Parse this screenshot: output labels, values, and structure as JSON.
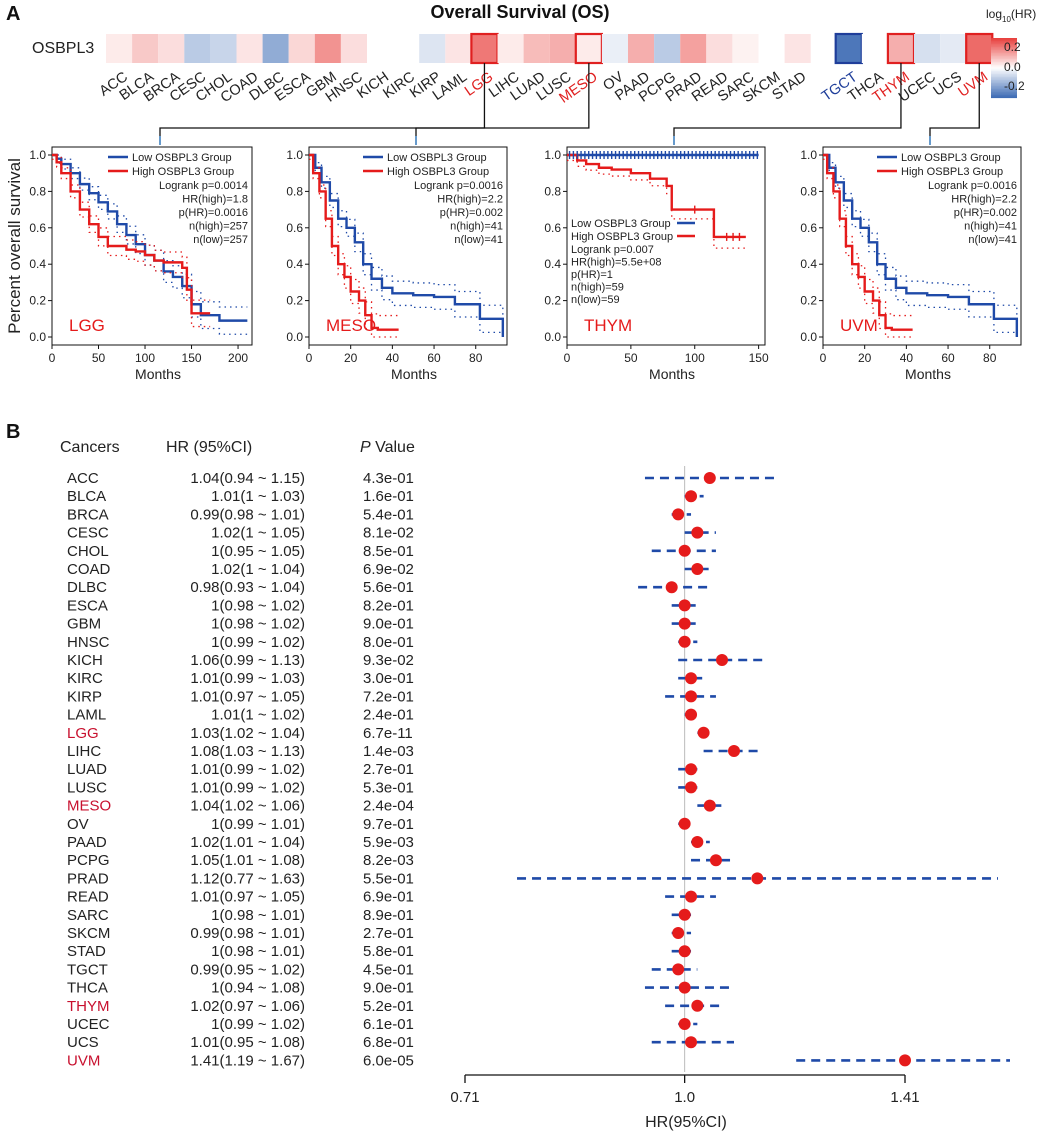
{
  "panel_a": {
    "letter": "A",
    "title": "Overall Survival (OS)",
    "gene": "OSBPL3",
    "legend": {
      "title_main": "log",
      "title_sub": "10",
      "title_tail": "(HR)",
      "ticks": [
        "0.2",
        "0.0",
        "-0.2"
      ],
      "high_color": "#e8423f",
      "low_color": "#3f6db5"
    },
    "heatmap": {
      "cancers": [
        "ACC",
        "BLCA",
        "BRCA",
        "CESC",
        "CHOL",
        "COAD",
        "DLBC",
        "ESCA",
        "GBM",
        "HNSC",
        "KICH",
        "KIRC",
        "KIRP",
        "LAML",
        "LGG",
        "LIHC",
        "LUAD",
        "LUSC",
        "MESO",
        "OV",
        "PAAD",
        "PCPG",
        "PRAD",
        "READ",
        "SARC",
        "SKCM",
        "STAD",
        "TGCT",
        "THCA",
        "THYM",
        "UCEC",
        "UCS",
        "UVM"
      ],
      "log10_hr": [
        0.03,
        0.08,
        0.05,
        -0.1,
        -0.08,
        0.04,
        -0.16,
        0.06,
        0.16,
        0.05,
        0.0,
        0.0,
        -0.05,
        0.04,
        0.2,
        0.03,
        0.1,
        0.12,
        0.03,
        -0.03,
        0.12,
        -0.1,
        0.14,
        0.05,
        0.02,
        0.0,
        0.04,
        -0.26,
        0.0,
        0.12,
        -0.06,
        -0.04,
        0.22
      ],
      "label_colors": [
        "#222",
        "#222",
        "#222",
        "#222",
        "#222",
        "#222",
        "#222",
        "#222",
        "#222",
        "#222",
        "#222",
        "#222",
        "#222",
        "#222",
        "#e02020",
        "#222",
        "#222",
        "#222",
        "#e02020",
        "#222",
        "#222",
        "#222",
        "#222",
        "#222",
        "#222",
        "#222",
        "#222",
        "#1f3e9a",
        "#222",
        "#e02020",
        "#222",
        "#222",
        "#e02020"
      ],
      "highlighted": [
        "LGG",
        "MESO",
        "TGCT",
        "THYM",
        "UVM"
      ]
    },
    "y_axis_label": "Percent overall survival",
    "km_plots": [
      {
        "name": "LGG",
        "xlabel": "Months",
        "x_ticks": [
          0,
          50,
          100,
          150,
          200
        ],
        "x_max": 215,
        "y_ticks": [
          "0.0",
          "0.2",
          "0.4",
          "0.6",
          "0.8",
          "1.0"
        ],
        "legend": [
          "Low OSBPL3 Group",
          "High OSBPL3 Group"
        ],
        "stats": [
          "Logrank p=0.0014",
          "HR(high)=1.8",
          "p(HR)=0.0016",
          "n(high)=257",
          "n(low)=257"
        ],
        "low": [
          [
            0,
            1
          ],
          [
            5,
            0.98
          ],
          [
            10,
            0.95
          ],
          [
            20,
            0.9
          ],
          [
            30,
            0.84
          ],
          [
            40,
            0.79
          ],
          [
            50,
            0.74
          ],
          [
            60,
            0.69
          ],
          [
            70,
            0.62
          ],
          [
            80,
            0.56
          ],
          [
            90,
            0.51
          ],
          [
            100,
            0.45
          ],
          [
            110,
            0.42
          ],
          [
            120,
            0.36
          ],
          [
            130,
            0.33
          ],
          [
            140,
            0.28
          ],
          [
            150,
            0.18
          ],
          [
            160,
            0.12
          ],
          [
            180,
            0.09
          ],
          [
            200,
            0.09
          ],
          [
            210,
            0.09
          ]
        ],
        "high": [
          [
            0,
            1
          ],
          [
            5,
            0.96
          ],
          [
            10,
            0.9
          ],
          [
            20,
            0.8
          ],
          [
            30,
            0.7
          ],
          [
            40,
            0.62
          ],
          [
            50,
            0.55
          ],
          [
            60,
            0.5
          ],
          [
            70,
            0.5
          ],
          [
            80,
            0.48
          ],
          [
            90,
            0.47
          ],
          [
            100,
            0.45
          ],
          [
            110,
            0.42
          ],
          [
            120,
            0.41
          ],
          [
            130,
            0.41
          ],
          [
            140,
            0.38
          ],
          [
            145,
            0.26
          ],
          [
            150,
            0.13
          ],
          [
            160,
            0.13
          ],
          [
            170,
            0.13
          ]
        ]
      },
      {
        "name": "MESO",
        "xlabel": "Months",
        "x_ticks": [
          0,
          20,
          40,
          60,
          80
        ],
        "x_max": 95,
        "y_ticks": [
          "0.0",
          "0.2",
          "0.4",
          "0.6",
          "0.8",
          "1.0"
        ],
        "legend": [
          "Low OSBPL3 Group",
          "High OSBPL3 Group"
        ],
        "stats": [
          "Logrank p=0.0016",
          "HR(high)=2.2",
          "p(HR)=0.002",
          "n(high)=41",
          "n(low)=41"
        ],
        "low": [
          [
            0,
            1
          ],
          [
            3,
            0.93
          ],
          [
            6,
            0.85
          ],
          [
            10,
            0.75
          ],
          [
            14,
            0.65
          ],
          [
            18,
            0.6
          ],
          [
            22,
            0.52
          ],
          [
            26,
            0.4
          ],
          [
            30,
            0.32
          ],
          [
            35,
            0.27
          ],
          [
            40,
            0.24
          ],
          [
            50,
            0.23
          ],
          [
            60,
            0.22
          ],
          [
            70,
            0.18
          ],
          [
            80,
            0.18
          ],
          [
            82,
            0.1
          ],
          [
            90,
            0.1
          ],
          [
            93,
            0.0
          ]
        ],
        "high": [
          [
            0,
            1
          ],
          [
            2,
            0.9
          ],
          [
            5,
            0.8
          ],
          [
            8,
            0.65
          ],
          [
            11,
            0.5
          ],
          [
            14,
            0.4
          ],
          [
            17,
            0.33
          ],
          [
            20,
            0.25
          ],
          [
            24,
            0.2
          ],
          [
            27,
            0.12
          ],
          [
            30,
            0.05
          ],
          [
            33,
            0.04
          ],
          [
            43,
            0.04
          ]
        ]
      },
      {
        "name": "THYM",
        "xlabel": "Months",
        "x_ticks": [
          0,
          50,
          100,
          150
        ],
        "x_max": 155,
        "y_ticks": [
          "0.0",
          "0.2",
          "0.4",
          "0.6",
          "0.8",
          "1.0"
        ],
        "legend": [
          "Low OSBPL3 Group",
          "High OSBPL3 Group"
        ],
        "stats": [
          "Logrank p=0.007",
          "HR(high)=5.5e+08",
          "p(HR)=1",
          "n(high)=59",
          "n(low)=59"
        ],
        "low": [
          [
            0,
            1
          ],
          [
            150,
            1
          ]
        ],
        "high": [
          [
            0,
            1
          ],
          [
            8,
            0.97
          ],
          [
            15,
            0.95
          ],
          [
            25,
            0.93
          ],
          [
            35,
            0.92
          ],
          [
            50,
            0.9
          ],
          [
            65,
            0.87
          ],
          [
            78,
            0.83
          ],
          [
            82,
            0.7
          ],
          [
            100,
            0.7
          ],
          [
            115,
            0.55
          ],
          [
            140,
            0.55
          ]
        ]
      },
      {
        "name": "UVM",
        "xlabel": "Months",
        "x_ticks": [
          0,
          20,
          40,
          60,
          80
        ],
        "x_max": 95,
        "y_ticks": [
          "0.0",
          "0.2",
          "0.4",
          "0.6",
          "0.8",
          "1.0"
        ],
        "legend": [
          "Low OSBPL3 Group",
          "High OSBPL3 Group"
        ],
        "stats": [
          "Logrank p=0.0016",
          "HR(high)=2.2",
          "p(HR)=0.002",
          "n(high)=41",
          "n(low)=41"
        ],
        "low": [
          [
            0,
            1
          ],
          [
            3,
            0.93
          ],
          [
            6,
            0.85
          ],
          [
            10,
            0.75
          ],
          [
            14,
            0.65
          ],
          [
            18,
            0.6
          ],
          [
            22,
            0.52
          ],
          [
            26,
            0.4
          ],
          [
            30,
            0.32
          ],
          [
            35,
            0.27
          ],
          [
            40,
            0.24
          ],
          [
            50,
            0.23
          ],
          [
            60,
            0.22
          ],
          [
            70,
            0.18
          ],
          [
            80,
            0.18
          ],
          [
            82,
            0.1
          ],
          [
            90,
            0.1
          ],
          [
            93,
            0.0
          ]
        ],
        "high": [
          [
            0,
            1
          ],
          [
            2,
            0.9
          ],
          [
            5,
            0.8
          ],
          [
            8,
            0.65
          ],
          [
            11,
            0.5
          ],
          [
            14,
            0.4
          ],
          [
            17,
            0.33
          ],
          [
            20,
            0.25
          ],
          [
            24,
            0.2
          ],
          [
            27,
            0.12
          ],
          [
            30,
            0.05
          ],
          [
            33,
            0.04
          ],
          [
            43,
            0.04
          ]
        ]
      }
    ]
  },
  "chart_data": {
    "type": "forest",
    "letter": "B",
    "columns": {
      "cancers": "Cancers",
      "hr": "HR (95%CI)",
      "p_italic": "P",
      "p_rest": " Value"
    },
    "xlabel": "HR(95%CI)",
    "x_ticks": [
      "0.71",
      "1.0",
      "1.41"
    ],
    "x_scale": "log",
    "xlim": [
      0.71,
      1.41
    ],
    "reference_line": 1.0,
    "rows": [
      {
        "cancer": "ACC",
        "hr_text": "1.04(0.94 ~ 1.15)",
        "p": "4.3e-01",
        "hr": 1.04,
        "lo": 0.94,
        "hi": 1.15,
        "color": "#222"
      },
      {
        "cancer": "BLCA",
        "hr_text": "1.01(1 ~ 1.03)",
        "p": "1.6e-01",
        "hr": 1.01,
        "lo": 1.0,
        "hi": 1.03,
        "color": "#222"
      },
      {
        "cancer": "BRCA",
        "hr_text": "0.99(0.98 ~ 1.01)",
        "p": "5.4e-01",
        "hr": 0.99,
        "lo": 0.98,
        "hi": 1.01,
        "color": "#222"
      },
      {
        "cancer": "CESC",
        "hr_text": "1.02(1 ~ 1.05)",
        "p": "8.1e-02",
        "hr": 1.02,
        "lo": 1.0,
        "hi": 1.05,
        "color": "#222"
      },
      {
        "cancer": "CHOL",
        "hr_text": "1(0.95 ~ 1.05)",
        "p": "8.5e-01",
        "hr": 1.0,
        "lo": 0.95,
        "hi": 1.05,
        "color": "#222"
      },
      {
        "cancer": "COAD",
        "hr_text": "1.02(1 ~ 1.04)",
        "p": "6.9e-02",
        "hr": 1.02,
        "lo": 1.0,
        "hi": 1.04,
        "color": "#222"
      },
      {
        "cancer": "DLBC",
        "hr_text": "0.98(0.93 ~ 1.04)",
        "p": "5.6e-01",
        "hr": 0.98,
        "lo": 0.93,
        "hi": 1.04,
        "color": "#222"
      },
      {
        "cancer": "ESCA",
        "hr_text": "1(0.98 ~ 1.02)",
        "p": "8.2e-01",
        "hr": 1.0,
        "lo": 0.98,
        "hi": 1.02,
        "color": "#222"
      },
      {
        "cancer": "GBM",
        "hr_text": "1(0.98 ~ 1.02)",
        "p": "9.0e-01",
        "hr": 1.0,
        "lo": 0.98,
        "hi": 1.02,
        "color": "#222"
      },
      {
        "cancer": "HNSC",
        "hr_text": "1(0.99 ~ 1.02)",
        "p": "8.0e-01",
        "hr": 1.0,
        "lo": 0.99,
        "hi": 1.02,
        "color": "#222"
      },
      {
        "cancer": "KICH",
        "hr_text": "1.06(0.99 ~ 1.13)",
        "p": "9.3e-02",
        "hr": 1.06,
        "lo": 0.99,
        "hi": 1.13,
        "color": "#222"
      },
      {
        "cancer": "KIRC",
        "hr_text": "1.01(0.99 ~ 1.03)",
        "p": "3.0e-01",
        "hr": 1.01,
        "lo": 0.99,
        "hi": 1.03,
        "color": "#222"
      },
      {
        "cancer": "KIRP",
        "hr_text": "1.01(0.97 ~ 1.05)",
        "p": "7.2e-01",
        "hr": 1.01,
        "lo": 0.97,
        "hi": 1.05,
        "color": "#222"
      },
      {
        "cancer": "LAML",
        "hr_text": "1.01(1 ~ 1.02)",
        "p": "2.4e-01",
        "hr": 1.01,
        "lo": 1.0,
        "hi": 1.02,
        "color": "#222"
      },
      {
        "cancer": "LGG",
        "hr_text": "1.03(1.02 ~ 1.04)",
        "p": "6.7e-11",
        "hr": 1.03,
        "lo": 1.02,
        "hi": 1.04,
        "color": "#c8102e"
      },
      {
        "cancer": "LIHC",
        "hr_text": "1.08(1.03 ~ 1.13)",
        "p": "1.4e-03",
        "hr": 1.08,
        "lo": 1.03,
        "hi": 1.13,
        "color": "#222"
      },
      {
        "cancer": "LUAD",
        "hr_text": "1.01(0.99 ~ 1.02)",
        "p": "2.7e-01",
        "hr": 1.01,
        "lo": 0.99,
        "hi": 1.02,
        "color": "#222"
      },
      {
        "cancer": "LUSC",
        "hr_text": "1.01(0.99 ~ 1.02)",
        "p": "5.3e-01",
        "hr": 1.01,
        "lo": 0.99,
        "hi": 1.02,
        "color": "#222"
      },
      {
        "cancer": "MESO",
        "hr_text": "1.04(1.02 ~ 1.06)",
        "p": "2.4e-04",
        "hr": 1.04,
        "lo": 1.02,
        "hi": 1.06,
        "color": "#c8102e"
      },
      {
        "cancer": "OV",
        "hr_text": "1(0.99 ~ 1.01)",
        "p": "9.7e-01",
        "hr": 1.0,
        "lo": 0.99,
        "hi": 1.01,
        "color": "#222"
      },
      {
        "cancer": "PAAD",
        "hr_text": "1.02(1.01 ~ 1.04)",
        "p": "5.9e-03",
        "hr": 1.02,
        "lo": 1.01,
        "hi": 1.04,
        "color": "#222"
      },
      {
        "cancer": "PCPG",
        "hr_text": "1.05(1.01 ~ 1.08)",
        "p": "8.2e-03",
        "hr": 1.05,
        "lo": 1.01,
        "hi": 1.08,
        "color": "#222"
      },
      {
        "cancer": "PRAD",
        "hr_text": "1.12(0.77 ~ 1.63)",
        "p": "5.5e-01",
        "hr": 1.12,
        "lo": 0.77,
        "hi": 1.63,
        "color": "#222"
      },
      {
        "cancer": "READ",
        "hr_text": "1.01(0.97 ~ 1.05)",
        "p": "6.9e-01",
        "hr": 1.01,
        "lo": 0.97,
        "hi": 1.05,
        "color": "#222"
      },
      {
        "cancer": "SARC",
        "hr_text": "1(0.98 ~ 1.01)",
        "p": "8.9e-01",
        "hr": 1.0,
        "lo": 0.98,
        "hi": 1.01,
        "color": "#222"
      },
      {
        "cancer": "SKCM",
        "hr_text": "0.99(0.98 ~ 1.01)",
        "p": "2.7e-01",
        "hr": 0.99,
        "lo": 0.98,
        "hi": 1.01,
        "color": "#222"
      },
      {
        "cancer": "STAD",
        "hr_text": "1(0.98 ~ 1.01)",
        "p": "5.8e-01",
        "hr": 1.0,
        "lo": 0.98,
        "hi": 1.01,
        "color": "#222"
      },
      {
        "cancer": "TGCT",
        "hr_text": "0.99(0.95 ~ 1.02)",
        "p": "4.5e-01",
        "hr": 0.99,
        "lo": 0.95,
        "hi": 1.02,
        "color": "#222"
      },
      {
        "cancer": "THCA",
        "hr_text": "1(0.94 ~ 1.08)",
        "p": "9.0e-01",
        "hr": 1.0,
        "lo": 0.94,
        "hi": 1.08,
        "color": "#222"
      },
      {
        "cancer": "THYM",
        "hr_text": "1.02(0.97 ~ 1.06)",
        "p": "5.2e-01",
        "hr": 1.02,
        "lo": 0.97,
        "hi": 1.06,
        "color": "#c8102e"
      },
      {
        "cancer": "UCEC",
        "hr_text": "1(0.99 ~ 1.02)",
        "p": "6.1e-01",
        "hr": 1.0,
        "lo": 0.99,
        "hi": 1.02,
        "color": "#222"
      },
      {
        "cancer": "UCS",
        "hr_text": "1.01(0.95 ~ 1.08)",
        "p": "6.8e-01",
        "hr": 1.01,
        "lo": 0.95,
        "hi": 1.08,
        "color": "#222"
      },
      {
        "cancer": "UVM",
        "hr_text": "1.41(1.19 ~ 1.67)",
        "p": "6.0e-05",
        "hr": 1.41,
        "lo": 1.19,
        "hi": 1.67,
        "color": "#c8102e"
      }
    ]
  }
}
